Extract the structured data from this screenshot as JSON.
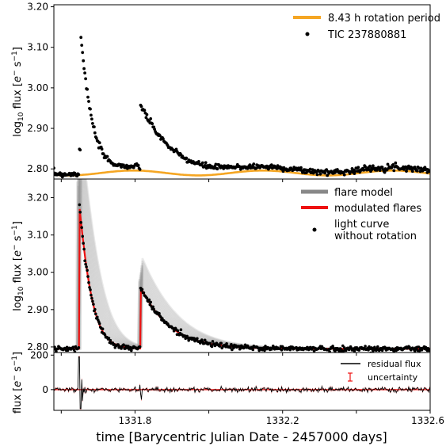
{
  "chart_data": [
    {
      "type": "scatter",
      "panel": "top",
      "ylabel": "log$_{10}$ flux [$e^-$ s$^{-1}$]",
      "ylabel_text": "log",
      "ylabel_sub": "10",
      "ylabel_rest": " flux [",
      "ylabel_e": "e",
      "ylabel_minus": "−",
      "ylabel_s": " s",
      "ylabel_exp": "−1",
      "ylabel_close": "]",
      "ylim": [
        2.775,
        3.205
      ],
      "yticks": [
        2.8,
        2.9,
        3.0,
        3.1,
        3.2
      ],
      "ytick_labels": [
        "2.80",
        "2.90",
        "3.00",
        "3.10",
        "3.20"
      ],
      "xlim": [
        1331.58,
        1332.6
      ],
      "legend": "top-right",
      "series": [
        {
          "name": "8.43 h rotation period",
          "kind": "line",
          "color": "#f5a623",
          "model": {
            "baseline": 2.79,
            "amplitude": 0.006,
            "period_days": 0.35125
          }
        },
        {
          "name": "TIC 237880881",
          "kind": "points",
          "color": "#000000",
          "flares": [
            {
              "t0": 1331.648,
              "peak": 3.185,
              "decay": 0.024
            },
            {
              "t0": 1331.815,
              "peak": 2.955,
              "decay": 0.07
            }
          ]
        }
      ]
    },
    {
      "type": "line",
      "panel": "middle",
      "ylabel": "log$_{10}$ flux [$e^-$ s$^{-1}$]",
      "ylim": [
        2.785,
        3.25
      ],
      "yticks": [
        2.8,
        2.9,
        3.0,
        3.1,
        3.2
      ],
      "ytick_labels": [
        "2.80",
        "2.90",
        "3.00",
        "3.10",
        "3.20"
      ],
      "xlim": [
        1331.58,
        1332.6
      ],
      "legend": "top-right",
      "series": [
        {
          "name": "flare model",
          "kind": "line",
          "color": "#888888"
        },
        {
          "name": "modulated flares",
          "kind": "line",
          "color": "#ee1111"
        },
        {
          "name": "light curve\nwithout rotation",
          "name_lines": [
            "light curve",
            "without rotation"
          ],
          "kind": "points",
          "color": "#000000"
        }
      ],
      "flares_model": [
        {
          "t0": 1331.648,
          "peak": 3.33,
          "decay": 0.03
        },
        {
          "t0": 1331.815,
          "peak": 3.01,
          "decay": 0.075
        }
      ],
      "flares_modulated": [
        {
          "t0": 1331.648,
          "peak": 3.19,
          "decay": 0.025
        },
        {
          "t0": 1331.815,
          "peak": 2.96,
          "decay": 0.07
        }
      ],
      "baseline": 2.795
    },
    {
      "type": "line",
      "panel": "bottom",
      "ylabel": "flux [$e^-$ s$^{-1}$]",
      "ylim": [
        -120,
        215
      ],
      "yticks": [
        0,
        200
      ],
      "ytick_labels": [
        "0",
        "200"
      ],
      "xlim": [
        1331.58,
        1332.6
      ],
      "xticks": [
        1331.8,
        1332.2,
        1332.6
      ],
      "xtick_labels": [
        "1331.8",
        "1332.2",
        "1332.6"
      ],
      "xlabel": "time [Barycentric Julian Date - 2457000 days]",
      "legend": "top-right",
      "series": [
        {
          "name": "residual flux",
          "kind": "line",
          "color": "#000000"
        },
        {
          "name": "uncertainty",
          "kind": "errorbar",
          "color": "#ee1111"
        }
      ]
    }
  ]
}
